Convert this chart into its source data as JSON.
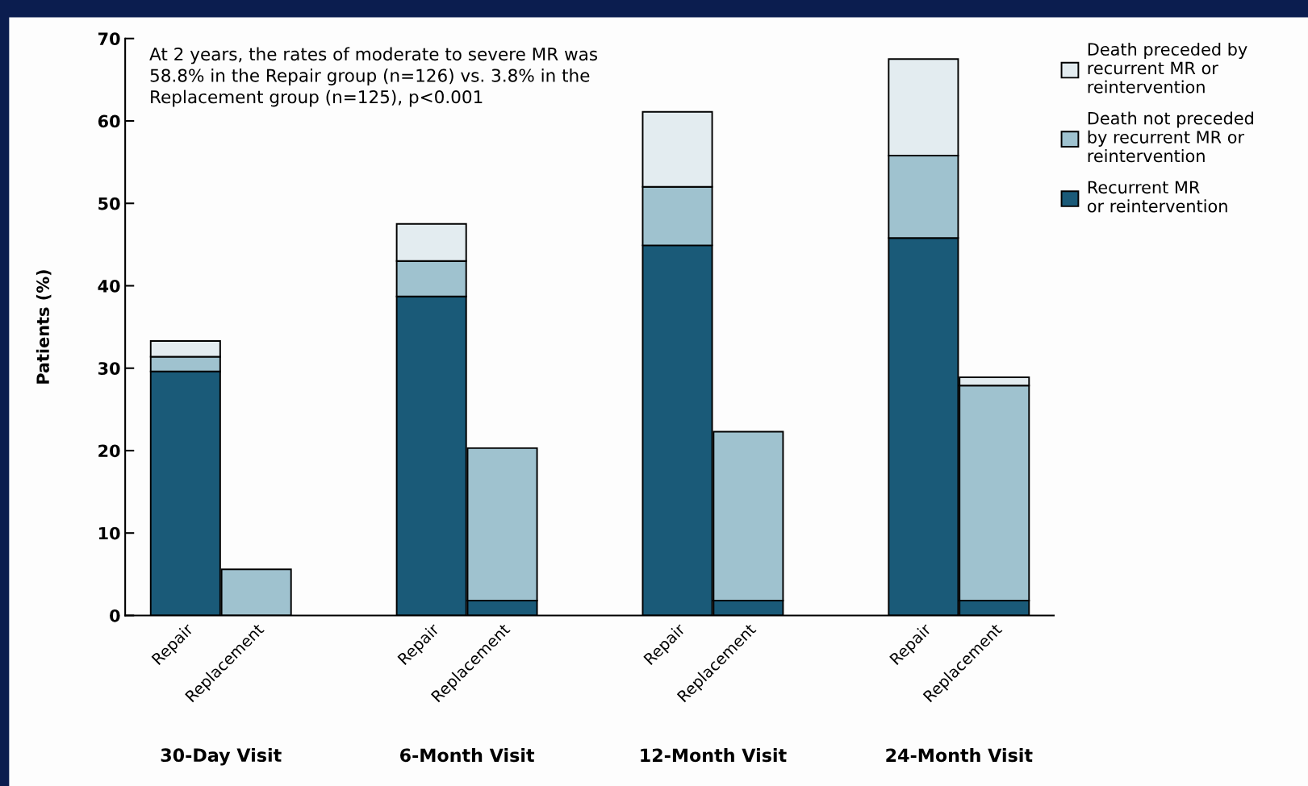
{
  "chart_data": {
    "type": "bar",
    "stacked": true,
    "ylabel": "Patients (%)",
    "categories": [
      "Repair",
      "Replacement",
      "Repair",
      "Replacement",
      "Repair",
      "Replacement",
      "Repair",
      "Replacement"
    ],
    "series": [
      {
        "name": "Recurrent MR\nor reintervention",
        "color": "#1a5a78",
        "values": [
          29.6,
          0,
          38.7,
          1.8,
          44.9,
          1.8,
          45.8,
          1.8
        ]
      },
      {
        "name": "Death not preceded\nby recurrent MR or\nreintervention",
        "color": "#9fc2cf",
        "values": [
          1.8,
          5.6,
          4.3,
          18.5,
          7.1,
          20.5,
          10.0,
          26.1
        ]
      },
      {
        "name": "Death preceded by\nrecurrent MR or\nreintervention",
        "color": "#e3ecf0",
        "values": [
          1.9,
          0,
          4.5,
          0,
          9.1,
          0,
          11.7,
          1.0
        ]
      }
    ],
    "ylim": [
      0,
      70
    ],
    "yticks": [
      0,
      10,
      20,
      30,
      40,
      50,
      60,
      70
    ],
    "grid": false,
    "legend": "right",
    "annotations": [
      "At 2 years, the rates of moderate to severe MR was\n58.8% in the Repair group (n=126) vs. 3.8% in the\nReplacement group (n=125), p<0.001",
      "30-Day Visit",
      "6-Month Visit",
      "12-Month Visit",
      "24-Month Visit"
    ]
  }
}
